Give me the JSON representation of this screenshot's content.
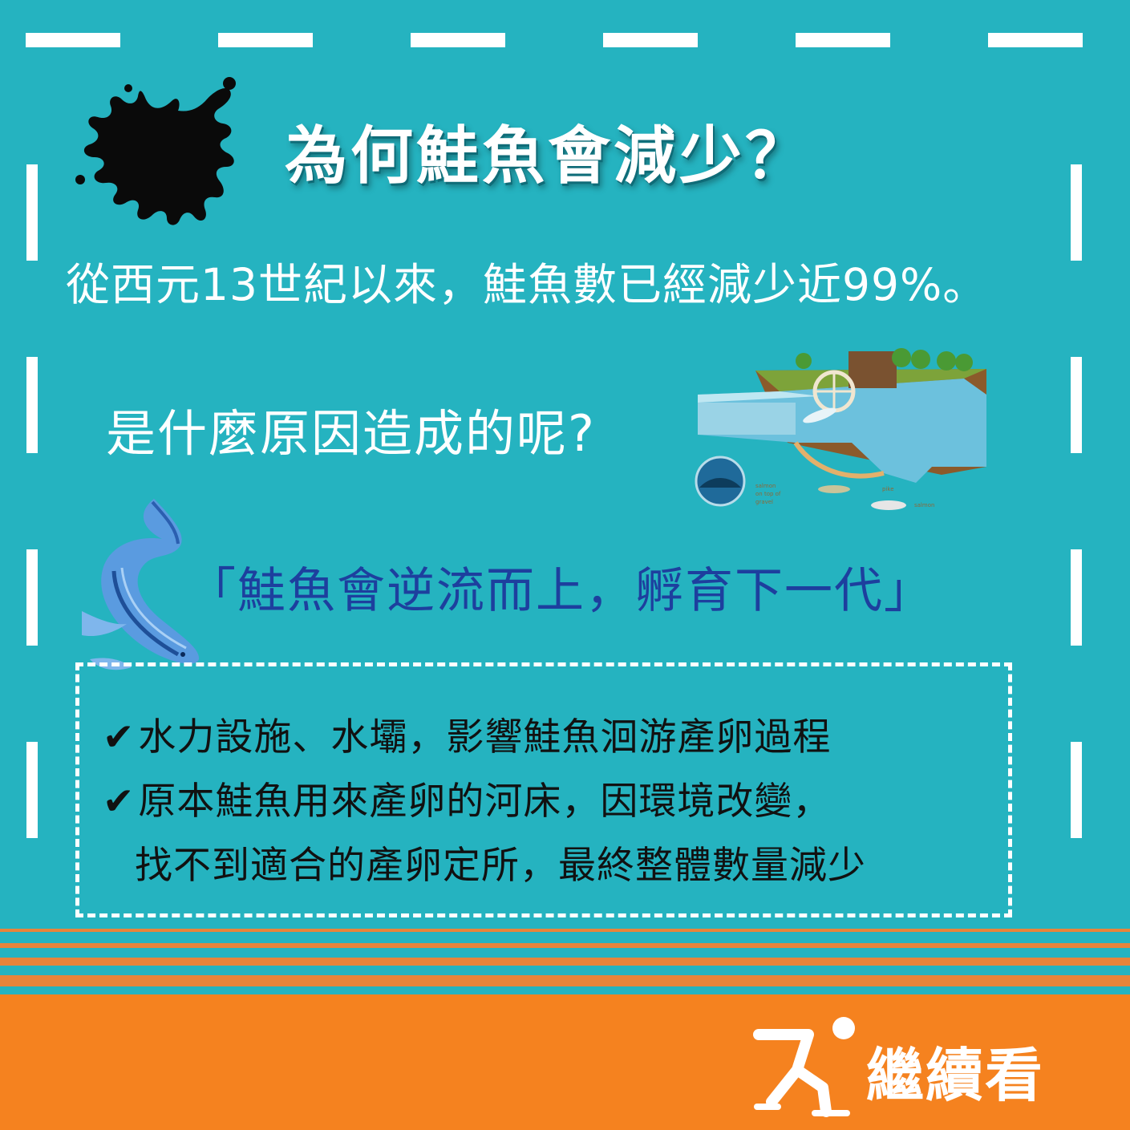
{
  "header": {
    "title": "為何鮭魚會減少？"
  },
  "intro": {
    "text": "從西元13世紀以來，鮭魚數已經減少近99%。"
  },
  "question": {
    "text": "是什麼原因造成的呢?"
  },
  "quote": {
    "text": "「鮭魚會逆流而上，孵育下一代」"
  },
  "reasons": {
    "check_symbol": "✔",
    "items": [
      "水力設施、水壩，影響鮭魚洄游產卵過程",
      "原本鮭魚用來產卵的河床，因環境改變，"
    ],
    "continuation": "找不到適合的產卵定所，最終整體數量減少"
  },
  "footer": {
    "cta_label": "繼續看"
  },
  "colors": {
    "background": "#25b3c0",
    "footer": "#f5821f",
    "quote": "#1d3f9e",
    "stripe": "#e8843a"
  }
}
